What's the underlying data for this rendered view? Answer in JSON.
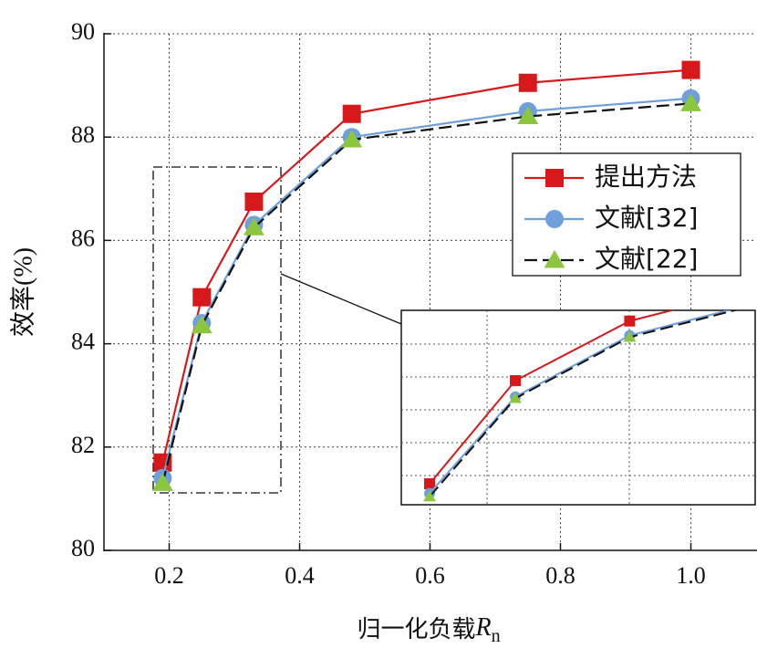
{
  "chart_data": {
    "type": "line",
    "x_label": {
      "text": "归一化负载",
      "symbol": "R",
      "subscript": "n"
    },
    "y_label": "效率(%)",
    "x": [
      0.19,
      0.25,
      0.33,
      0.48,
      0.75,
      1.0
    ],
    "series": [
      {
        "name": "提出方法",
        "color": "#d7191c",
        "marker": "square",
        "dash": "solid",
        "values": [
          81.7,
          84.9,
          86.75,
          88.45,
          89.05,
          89.3
        ]
      },
      {
        "name": "文献[32]",
        "color": "#6fa0dc",
        "marker": "circle",
        "dash": "solid",
        "values": [
          81.4,
          84.4,
          86.3,
          88.0,
          88.5,
          88.75
        ]
      },
      {
        "name": "文献[22]",
        "color": "#111111",
        "marker": "triangle",
        "marker_color": "#8cc63f",
        "dash": "dashed",
        "values": [
          81.3,
          84.35,
          86.25,
          87.95,
          88.4,
          88.65
        ]
      }
    ],
    "xlim": [
      0.1,
      1.1
    ],
    "xticks": [
      0.2,
      0.4,
      0.6,
      0.8,
      {
        "value": 1.0,
        "label": "1.0"
      }
    ],
    "ylim": [
      80,
      90
    ],
    "yticks": [
      80,
      82,
      84,
      86,
      88,
      90
    ],
    "grid": true,
    "legend": "right"
  }
}
